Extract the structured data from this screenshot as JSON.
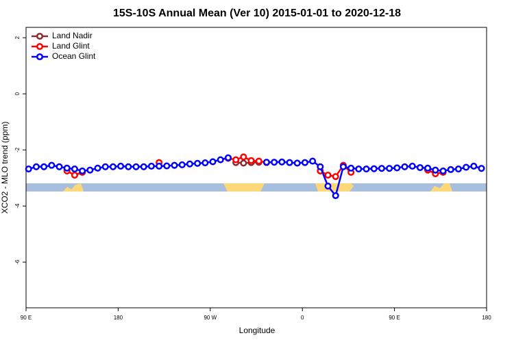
{
  "chart_data": {
    "type": "line",
    "title": "15S-10S Annual Mean (Ver 10)   2015-01-01 to 2020-12-18",
    "xlabel": "Longitude",
    "ylabel": "XCO2 - MLO trend (ppm)",
    "x": [
      92.5,
      100,
      107.5,
      115,
      122.5,
      130,
      137.5,
      145,
      152.5,
      160,
      167.5,
      175,
      182.5,
      190,
      197.5,
      205,
      212.5,
      220,
      227.5,
      235,
      242.5,
      250,
      257.5,
      265,
      272.5,
      280,
      287.5,
      295,
      302.5,
      310,
      317.5,
      325,
      332.5,
      340,
      347.5,
      355,
      362.5,
      370,
      377.5,
      385,
      392.5,
      400,
      407.5,
      415,
      422.5,
      430,
      437.5,
      445,
      452.5,
      460,
      467.5,
      475,
      482.5,
      490,
      497.5,
      505,
      512.5,
      520,
      527.5,
      535
    ],
    "series": [
      {
        "name": "Land Nadir",
        "color": "#8b2a2a",
        "values": [
          null,
          null,
          null,
          null,
          null,
          -2.7,
          null,
          null,
          null,
          null,
          null,
          null,
          null,
          null,
          null,
          null,
          null,
          null,
          null,
          null,
          null,
          null,
          null,
          null,
          null,
          null,
          null,
          -2.45,
          -2.47,
          -2.45,
          -2.44,
          null,
          null,
          null,
          null,
          null,
          null,
          null,
          null,
          null,
          null,
          null,
          null,
          null,
          null,
          null,
          null,
          null,
          null,
          null,
          null,
          null,
          -2.7,
          null,
          null,
          null,
          null,
          null,
          null,
          null
        ]
      },
      {
        "name": "Land Glint",
        "color": "#ff0000",
        "values": [
          null,
          null,
          null,
          null,
          null,
          -2.75,
          -2.9,
          -2.8,
          null,
          null,
          null,
          null,
          null,
          null,
          null,
          null,
          null,
          -2.45,
          null,
          null,
          null,
          null,
          null,
          null,
          null,
          null,
          -2.3,
          -2.35,
          -2.25,
          -2.38,
          -2.4,
          -2.45,
          null,
          null,
          null,
          null,
          null,
          null,
          -2.75,
          -2.9,
          -2.95,
          -2.55,
          -2.8,
          null,
          null,
          null,
          null,
          null,
          null,
          null,
          null,
          null,
          -2.72,
          -2.85,
          -2.8,
          null,
          null,
          null,
          null,
          null
        ]
      },
      {
        "name": "Ocean Glint",
        "color": "#0000ff",
        "values": [
          -2.68,
          -2.6,
          -2.6,
          -2.55,
          -2.6,
          -2.65,
          -2.68,
          -2.75,
          -2.72,
          -2.65,
          -2.6,
          -2.6,
          -2.58,
          -2.6,
          -2.6,
          -2.6,
          -2.58,
          -2.58,
          -2.57,
          -2.55,
          -2.53,
          -2.5,
          -2.48,
          -2.46,
          -2.42,
          -2.35,
          -2.28,
          null,
          null,
          null,
          null,
          -2.44,
          -2.44,
          -2.43,
          -2.45,
          -2.47,
          -2.45,
          -2.4,
          -2.6,
          -3.29,
          -3.63,
          -2.6,
          -2.65,
          -2.68,
          -2.68,
          -2.67,
          -2.66,
          -2.66,
          -2.64,
          -2.6,
          -2.58,
          -2.63,
          -2.65,
          -2.72,
          -2.75,
          -2.7,
          -2.68,
          -2.62,
          -2.58,
          -2.66
        ]
      }
    ],
    "xlim": [
      90,
      540
    ],
    "xticks": [
      {
        "value": 90,
        "label": "90 E"
      },
      180,
      {
        "value": 270,
        "label": "90 W"
      },
      {
        "value": 360,
        "label": "0"
      },
      {
        "value": 450,
        "label": "90 E"
      },
      {
        "value": 540,
        "label": "180"
      }
    ],
    "ylim": [
      -7.63,
      2.37
    ],
    "yticks": [
      2,
      0,
      -2,
      -4,
      -6
    ],
    "legend": "top-left"
  }
}
